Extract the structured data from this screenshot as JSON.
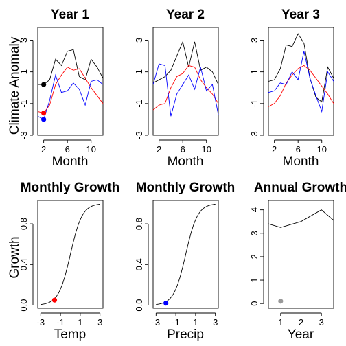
{
  "panels": [
    {
      "type": "line",
      "title": "Year 1",
      "xlabel": "Month",
      "ylabel": "Climate Anomaly",
      "xlim": [
        1,
        12
      ],
      "ylim": [
        -3,
        3.8
      ],
      "x_ticks": [
        2,
        6,
        10
      ],
      "x_tick_labels": [
        "2",
        "6",
        "10"
      ],
      "y_ticks": [
        -3,
        -1,
        1,
        3
      ],
      "y_tick_labels": [
        "-3",
        "-1",
        "1",
        "3"
      ],
      "series": [
        {
          "color": "#000000",
          "x": [
            1,
            2,
            3,
            4,
            5,
            6,
            7,
            8,
            9,
            10,
            11,
            12
          ],
          "values": [
            0.2,
            0.2,
            0.5,
            1.8,
            1.4,
            2.3,
            2.4,
            0.7,
            0.5,
            1.8,
            1.3,
            0.6
          ]
        },
        {
          "color": "#ff0000",
          "x": [
            1,
            2,
            3,
            4,
            5,
            6,
            7,
            8,
            9,
            10,
            11,
            12
          ],
          "values": [
            -1.5,
            -1.6,
            -1.1,
            0.2,
            0.8,
            1.3,
            1.1,
            1.2,
            0.6,
            0.0,
            -0.5,
            -1.0
          ]
        },
        {
          "color": "#0000ff",
          "x": [
            1,
            2,
            3,
            4,
            5,
            6,
            7,
            8,
            9,
            10,
            11,
            12
          ],
          "values": [
            -1.8,
            -2.0,
            -0.8,
            0.8,
            -0.3,
            -0.2,
            0.3,
            -0.1,
            -1.1,
            0.4,
            0.5,
            0.2
          ]
        }
      ],
      "points": [
        {
          "x": 2,
          "y": 0.2,
          "color": "#000000"
        },
        {
          "x": 2,
          "y": -1.6,
          "color": "#ff0000"
        },
        {
          "x": 2,
          "y": -2.0,
          "color": "#0000ff"
        }
      ]
    },
    {
      "type": "line",
      "title": "Year 2",
      "xlabel": "Month",
      "ylabel": "",
      "xlim": [
        1,
        12
      ],
      "ylim": [
        -3,
        3.8
      ],
      "x_ticks": [
        2,
        6,
        10
      ],
      "x_tick_labels": [
        "2",
        "6",
        "10"
      ],
      "y_ticks": [
        -3,
        -1,
        1,
        3
      ],
      "y_tick_labels": [
        "-3",
        "-1",
        "1",
        "3"
      ],
      "series": [
        {
          "color": "#000000",
          "x": [
            1,
            2,
            3,
            4,
            5,
            6,
            7,
            8,
            9,
            10,
            11,
            12
          ],
          "values": [
            0.3,
            0.5,
            0.7,
            1.1,
            2.0,
            2.9,
            1.3,
            2.9,
            1.1,
            1.3,
            1.0,
            0.2
          ]
        },
        {
          "color": "#ff0000",
          "x": [
            1,
            2,
            3,
            4,
            5,
            6,
            7,
            8,
            9,
            10,
            11,
            12
          ],
          "values": [
            -1.4,
            -1.1,
            -1.0,
            0.0,
            0.7,
            0.9,
            1.4,
            1.3,
            0.5,
            0.0,
            -0.4,
            -1.0
          ]
        },
        {
          "color": "#0000ff",
          "x": [
            1,
            2,
            3,
            4,
            5,
            6,
            7,
            8,
            9,
            10,
            11,
            12
          ],
          "values": [
            0.2,
            1.5,
            1.4,
            -1.8,
            -0.4,
            0.2,
            0.8,
            -0.1,
            1.3,
            -0.2,
            0.2,
            -1.7
          ]
        }
      ],
      "points": []
    },
    {
      "type": "line",
      "title": "Year 3",
      "xlabel": "Month",
      "ylabel": "",
      "xlim": [
        1,
        12
      ],
      "ylim": [
        -3,
        3.8
      ],
      "x_ticks": [
        2,
        6,
        10
      ],
      "x_tick_labels": [
        "2",
        "6",
        "10"
      ],
      "y_ticks": [
        -3,
        -1,
        1,
        3
      ],
      "y_tick_labels": [
        "-3",
        "-1",
        "1",
        "3"
      ],
      "series": [
        {
          "color": "#000000",
          "x": [
            1,
            2,
            3,
            4,
            5,
            6,
            7,
            8,
            9,
            10,
            11,
            12
          ],
          "values": [
            0.4,
            0.5,
            1.2,
            2.7,
            2.6,
            3.4,
            2.8,
            0.6,
            -0.6,
            -0.9,
            1.3,
            0.6
          ]
        },
        {
          "color": "#ff0000",
          "x": [
            1,
            2,
            3,
            4,
            5,
            6,
            7,
            8,
            9,
            10,
            11,
            12
          ],
          "values": [
            -1.2,
            -1.0,
            -0.5,
            0.3,
            0.8,
            1.2,
            1.4,
            1.1,
            0.6,
            0.1,
            -0.4,
            -1.0
          ]
        },
        {
          "color": "#0000ff",
          "x": [
            1,
            2,
            3,
            4,
            5,
            6,
            7,
            8,
            9,
            10,
            11,
            12
          ],
          "values": [
            -0.3,
            -0.2,
            0.3,
            0.2,
            1.0,
            0.5,
            2.3,
            0.6,
            -0.5,
            -1.5,
            1.0,
            0.4
          ]
        }
      ],
      "points": []
    },
    {
      "type": "line",
      "title": "Monthly Growth",
      "xlabel": "Temp",
      "ylabel": "Growth",
      "xlim": [
        -3.3,
        3.3
      ],
      "ylim": [
        -0.03,
        1.03
      ],
      "x_ticks": [
        -3,
        -1,
        1,
        3
      ],
      "x_tick_labels": [
        "-3",
        "-1",
        "1",
        "3"
      ],
      "y_ticks": [
        0.0,
        0.4,
        0.8
      ],
      "y_tick_labels": [
        "0.0",
        "0.4",
        "0.8"
      ],
      "curve": {
        "type": "logistic",
        "center": 0.0,
        "scale": 0.6,
        "x_from": -3,
        "x_to": 3,
        "color": "#000000"
      },
      "points": [
        {
          "x": -1.6,
          "y": 0.05,
          "color": "#ff0000"
        }
      ]
    },
    {
      "type": "line",
      "title": "Monthly Growth",
      "xlabel": "Precip",
      "ylabel": "",
      "xlim": [
        -3.3,
        3.3
      ],
      "ylim": [
        -0.03,
        1.03
      ],
      "x_ticks": [
        -3,
        -1,
        1,
        3
      ],
      "x_tick_labels": [
        "-3",
        "-1",
        "1",
        "3"
      ],
      "y_ticks": [
        0.0,
        0.4,
        0.8
      ],
      "y_tick_labels": [
        "0.0",
        "0.4",
        "0.8"
      ],
      "curve": {
        "type": "logistic",
        "center": 0.0,
        "scale": 0.6,
        "x_from": -3,
        "x_to": 3,
        "color": "#000000"
      },
      "points": [
        {
          "x": -2.0,
          "y": 0.02,
          "color": "#0000ff"
        }
      ]
    },
    {
      "type": "line",
      "title": "Annual Growth",
      "xlabel": "Year",
      "ylabel": "",
      "xlim": [
        0.4,
        3.6
      ],
      "ylim": [
        -0.2,
        4.4
      ],
      "x_ticks": [
        1,
        2,
        3
      ],
      "x_tick_labels": [
        "1",
        "2",
        "3"
      ],
      "y_ticks": [
        0,
        1,
        2,
        3,
        4
      ],
      "y_tick_labels": [
        "0",
        "1",
        "2",
        "3",
        "4"
      ],
      "series": [
        {
          "color": "#000000",
          "x": [
            0.4,
            1,
            2,
            3,
            3.6
          ],
          "values": [
            3.4,
            3.25,
            3.5,
            4.0,
            3.55
          ]
        }
      ],
      "points": [
        {
          "x": 1,
          "y": 0.1,
          "color": "#999999"
        }
      ]
    }
  ]
}
